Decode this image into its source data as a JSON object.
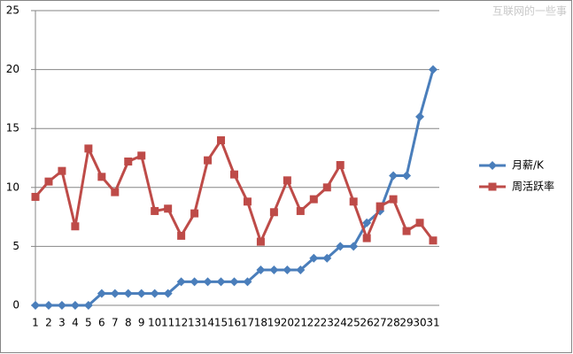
{
  "chart_data": {
    "type": "line",
    "watermark": "互联网的一些事",
    "categories": [
      "1",
      "2",
      "3",
      "4",
      "5",
      "6",
      "7",
      "8",
      "9",
      "10",
      "11",
      "12",
      "13",
      "14",
      "15",
      "16",
      "17",
      "18",
      "19",
      "20",
      "21",
      "22",
      "23",
      "24",
      "25",
      "26",
      "27",
      "28",
      "29",
      "30",
      "31"
    ],
    "series": [
      {
        "name": "月薪/K",
        "color": "#4a7ebb",
        "marker": "diamond",
        "values": [
          0,
          0,
          0,
          0,
          0,
          1,
          1,
          1,
          1,
          1,
          1,
          2,
          2,
          2,
          2,
          2,
          2,
          3,
          3,
          3,
          3,
          4,
          4,
          5,
          5,
          7,
          8,
          11,
          11,
          16,
          20
        ]
      },
      {
        "name": "周活跃率",
        "color": "#be4b48",
        "marker": "square",
        "values": [
          9.2,
          10.5,
          11.4,
          6.7,
          13.3,
          10.9,
          9.6,
          12.2,
          12.7,
          8.0,
          8.2,
          5.9,
          7.8,
          12.3,
          14.0,
          11.1,
          8.8,
          5.4,
          7.9,
          10.6,
          8.0,
          9.0,
          10.0,
          11.9,
          8.8,
          5.7,
          8.4,
          9.0,
          6.3,
          7.0,
          5.5
        ]
      }
    ],
    "ylim": [
      0,
      25
    ],
    "yticks": [
      0,
      5,
      10,
      15,
      20,
      25
    ],
    "grid": true,
    "legend": "right"
  }
}
